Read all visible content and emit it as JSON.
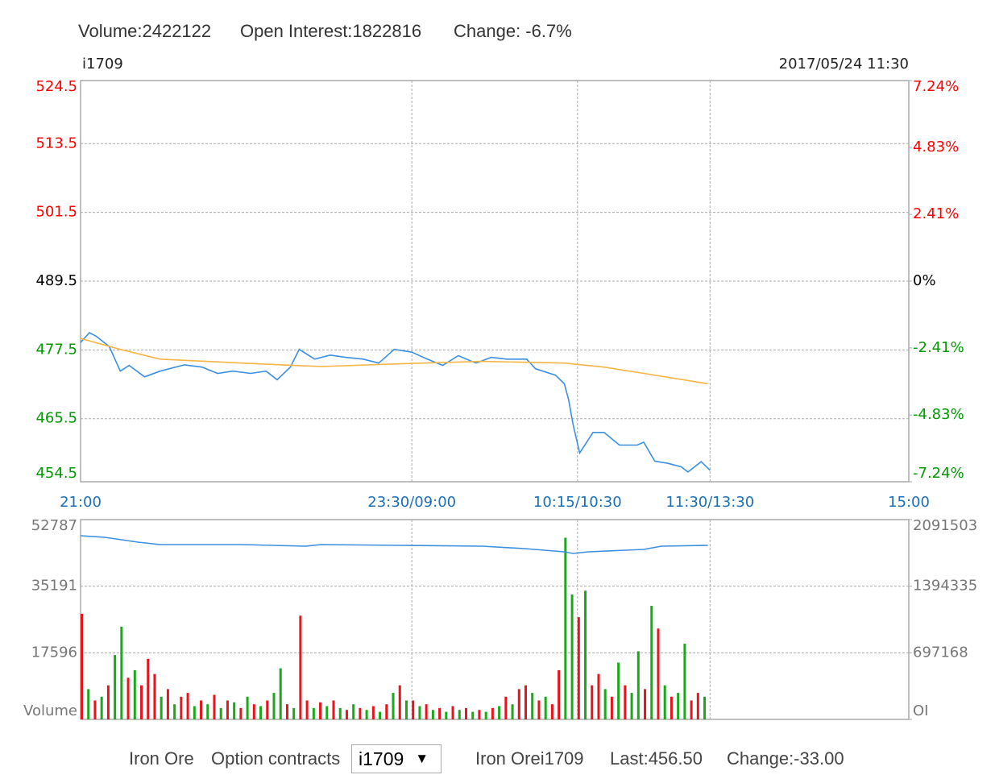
{
  "header": {
    "items": [
      "Volume:2422122",
      "Open Interest:1822816",
      "Change: -6.7%"
    ]
  },
  "chart_data": [
    {
      "type": "line",
      "symbol": "i1709",
      "timestamp": "2017/05/24 11:30",
      "xlim": [
        0,
        375
      ],
      "xticks": [
        {
          "value": 0,
          "label": "21:00"
        },
        {
          "value": 150,
          "label": "23:30/09:00"
        },
        {
          "value": 225,
          "label": "10:15/10:30"
        },
        {
          "value": 285,
          "label": "11:30/13:30"
        },
        {
          "value": 375,
          "label": "15:00"
        }
      ],
      "ylim": [
        454.5,
        524.5
      ],
      "yticks": [
        454.5,
        465.5,
        477.5,
        489.5,
        501.5,
        513.5,
        524.5
      ],
      "y2lim": [
        -7.24,
        7.24
      ],
      "y2ticks": [
        {
          "value": -7.24,
          "label": "-7.24%"
        },
        {
          "value": -4.83,
          "label": "-4.83%"
        },
        {
          "value": -2.41,
          "label": "-2.41%"
        },
        {
          "value": 0,
          "label": "0%"
        },
        {
          "value": 2.41,
          "label": "2.41%"
        },
        {
          "value": 4.83,
          "label": "4.83%"
        },
        {
          "value": 7.24,
          "label": "7.24%"
        }
      ],
      "grid": true,
      "tick_colors": {
        "up": "#ff0000",
        "flat": "#000000",
        "down": "#009900"
      },
      "x_tick_color": "#1a6fb5",
      "series": [
        {
          "color": "#3b8fe0",
          "x": [
            0,
            4,
            7,
            13,
            18,
            22,
            29,
            36,
            47,
            55,
            62,
            69,
            77,
            84,
            89,
            95,
            99,
            106,
            113,
            120,
            128,
            135,
            142,
            150,
            157,
            164,
            171,
            179,
            186,
            193,
            202,
            206,
            215,
            219,
            221,
            223,
            226,
            232,
            237,
            244,
            252,
            255,
            260,
            266,
            272,
            275,
            281,
            285
          ],
          "values": [
            478.8,
            480.5,
            479.9,
            478.1,
            473.8,
            474.8,
            472.8,
            473.8,
            474.9,
            474.5,
            473.4,
            473.8,
            473.4,
            473.8,
            472.3,
            474.5,
            477.6,
            475.9,
            476.6,
            476.2,
            475.9,
            475.2,
            477.6,
            477.1,
            475.9,
            474.8,
            476.5,
            475.2,
            476.2,
            475.9,
            475.9,
            474.2,
            473.1,
            471.6,
            468.8,
            464.5,
            459.5,
            463.1,
            463.1,
            460.9,
            460.9,
            461.4,
            458.1,
            457.7,
            457.1,
            456.2,
            458.0,
            456.5
          ]
        },
        {
          "color": "#f5b445",
          "x": [
            0,
            18,
            36,
            73,
            109,
            146,
            182,
            219,
            237,
            255,
            284
          ],
          "values": [
            479.5,
            477.6,
            475.9,
            475.2,
            474.6,
            475.1,
            475.5,
            475.2,
            474.5,
            473.4,
            471.6
          ]
        }
      ]
    },
    {
      "type": "bar",
      "ylim": [
        0,
        52787
      ],
      "yticks": [
        {
          "value": 0,
          "label": "Volume"
        },
        17596,
        35191,
        52787
      ],
      "y2lim": [
        0,
        2091503
      ],
      "y2ticks": [
        {
          "value": 0,
          "label": "OI"
        },
        697168,
        1394335,
        2091503
      ],
      "grid": true,
      "tick_color": "#777777",
      "series": [
        {
          "type": "bar",
          "x": [
            0,
            3,
            6,
            9,
            12,
            15,
            18,
            21,
            24,
            27,
            30,
            33,
            36,
            39,
            42,
            45,
            48,
            51,
            54,
            57,
            60,
            63,
            66,
            69,
            72,
            75,
            78,
            81,
            84,
            87,
            90,
            93,
            96,
            99,
            102,
            105,
            108,
            111,
            114,
            117,
            120,
            123,
            126,
            129,
            132,
            135,
            138,
            141,
            144,
            147,
            150,
            153,
            156,
            159,
            162,
            165,
            168,
            171,
            174,
            177,
            180,
            183,
            186,
            189,
            192,
            195,
            198,
            201,
            204,
            207,
            210,
            213,
            216,
            219,
            222,
            225,
            228,
            231,
            234,
            237,
            240,
            243,
            246,
            249,
            252,
            255,
            258,
            261,
            264,
            267,
            270,
            273,
            276,
            279,
            282
          ],
          "values": [
            27900,
            8000,
            5000,
            6000,
            9000,
            17000,
            24500,
            11000,
            13000,
            9000,
            16000,
            12000,
            6000,
            8000,
            4000,
            6000,
            7000,
            3500,
            5000,
            4000,
            6500,
            3000,
            5000,
            4500,
            3000,
            6000,
            4000,
            3500,
            5000,
            7000,
            13500,
            4000,
            3000,
            27400,
            5000,
            3000,
            4500,
            3500,
            5000,
            3000,
            2500,
            4000,
            3000,
            2500,
            3500,
            2000,
            4000,
            7000,
            9000,
            5000,
            5000,
            3500,
            4000,
            2500,
            3000,
            2000,
            3500,
            2500,
            3000,
            2000,
            2500,
            2000,
            3000,
            3500,
            6000,
            4000,
            8000,
            9000,
            7000,
            5000,
            6000,
            4000,
            13000,
            48000,
            33000,
            27000,
            34000,
            9000,
            12000,
            8000,
            6000,
            15000,
            9000,
            7000,
            18000,
            8000,
            30000,
            24000,
            9000,
            6000,
            7000,
            20000,
            5000,
            7000,
            6000
          ],
          "colors": [
            "#e8131b",
            "#1ba81b",
            "#e8131b",
            "#1ba81b",
            "#e8131b",
            "#1ba81b",
            "#1ba81b",
            "#e8131b",
            "#1ba81b",
            "#e8131b",
            "#e8131b",
            "#e8131b",
            "#1ba81b",
            "#e8131b",
            "#1ba81b",
            "#e8131b",
            "#e8131b",
            "#1ba81b",
            "#e8131b",
            "#1ba81b",
            "#e8131b",
            "#1ba81b",
            "#e8131b",
            "#1ba81b",
            "#e8131b",
            "#1ba81b",
            "#e8131b",
            "#1ba81b",
            "#e8131b",
            "#1ba81b",
            "#1ba81b",
            "#e8131b",
            "#1ba81b",
            "#e8131b",
            "#e8131b",
            "#1ba81b",
            "#e8131b",
            "#1ba81b",
            "#e8131b",
            "#1ba81b",
            "#e8131b",
            "#1ba81b",
            "#e8131b",
            "#1ba81b",
            "#e8131b",
            "#1ba81b",
            "#e8131b",
            "#1ba81b",
            "#e8131b",
            "#1ba81b",
            "#e8131b",
            "#1ba81b",
            "#e8131b",
            "#1ba81b",
            "#e8131b",
            "#1ba81b",
            "#e8131b",
            "#1ba81b",
            "#e8131b",
            "#1ba81b",
            "#e8131b",
            "#1ba81b",
            "#e8131b",
            "#1ba81b",
            "#e8131b",
            "#1ba81b",
            "#e8131b",
            "#e8131b",
            "#1ba81b",
            "#e8131b",
            "#1ba81b",
            "#e8131b",
            "#e8131b",
            "#1ba81b",
            "#1ba81b",
            "#e8131b",
            "#1ba81b",
            "#e8131b",
            "#e8131b",
            "#1ba81b",
            "#e8131b",
            "#1ba81b",
            "#e8131b",
            "#1ba81b",
            "#1ba81b",
            "#e8131b",
            "#1ba81b",
            "#e8131b",
            "#1ba81b",
            "#e8131b",
            "#1ba81b",
            "#1ba81b",
            "#e8131b",
            "#e8131b",
            "#1ba81b"
          ]
        },
        {
          "type": "line",
          "axis": "y2",
          "color": "#3b8fe0",
          "x": [
            0,
            11,
            26,
            36,
            73,
            102,
            109,
            146,
            182,
            201,
            219,
            223,
            230,
            255,
            263,
            284
          ],
          "values": [
            1922838,
            1905971,
            1855370,
            1830070,
            1830070,
            1813203,
            1830070,
            1821636,
            1813203,
            1787902,
            1754168,
            1737301,
            1754168,
            1779469,
            1813203,
            1822816
          ]
        }
      ]
    }
  ],
  "footer": {
    "items": [
      "Iron Ore",
      "Option contracts"
    ],
    "select": "i1709",
    "info": [
      "Iron Orei1709",
      "Last:456.50",
      "Change:-33.00"
    ]
  }
}
